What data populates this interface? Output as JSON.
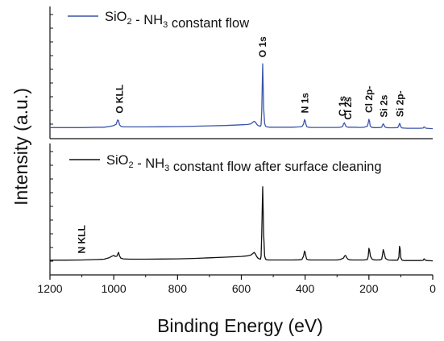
{
  "chart_data": {
    "type": "line",
    "xlabel": "Binding Energy (eV)",
    "ylabel": "Intensity (a.u.)",
    "xlim": [
      1200,
      0
    ],
    "x_reversed": true,
    "x_ticks": [
      1200,
      1000,
      800,
      600,
      400,
      200,
      0
    ],
    "y_ticks_visible": false,
    "grid": false,
    "panels": [
      {
        "position": "top",
        "legend": {
          "prefix": "SiO",
          "sub1": "2",
          "middle": " - NH",
          "sub2": "3",
          "suffix": " constant flow"
        },
        "color": "#3a55a8",
        "series": {
          "x": [
            1200,
            1150,
            1100,
            1050,
            1030,
            1010,
            1000,
            992,
            988,
            985,
            982,
            978,
            970,
            950,
            900,
            850,
            800,
            750,
            700,
            650,
            600,
            580,
            570,
            565,
            560,
            556,
            552,
            548,
            544,
            540,
            538,
            536,
            533,
            530,
            527,
            524,
            520,
            510,
            500,
            480,
            460,
            440,
            420,
            410,
            405,
            402,
            400,
            397,
            395,
            390,
            380,
            360,
            340,
            320,
            300,
            290,
            285,
            282,
            280,
            277,
            275,
            272,
            270,
            265,
            260,
            250,
            240,
            230,
            215,
            205,
            202,
            200,
            198,
            196,
            192,
            185,
            175,
            165,
            160,
            157,
            155,
            153,
            150,
            145,
            135,
            125,
            110,
            106,
            104,
            102,
            100,
            96,
            90,
            80,
            60,
            40,
            30,
            27,
            25,
            22,
            20,
            10,
            0
          ],
          "y": [
            0.4,
            0.4,
            0.4,
            0.5,
            0.5,
            0.8,
            1.0,
            1.4,
            2.6,
            2.4,
            1.2,
            0.8,
            0.6,
            0.6,
            0.6,
            0.65,
            0.7,
            0.8,
            0.9,
            1.0,
            1.2,
            1.3,
            1.5,
            1.9,
            2.2,
            2.0,
            1.4,
            1.0,
            0.9,
            0.8,
            1.2,
            5.0,
            18.8,
            6.0,
            1.6,
            0.8,
            0.6,
            0.5,
            0.5,
            0.5,
            0.5,
            0.5,
            0.6,
            0.7,
            1.4,
            2.7,
            2.4,
            1.2,
            0.7,
            0.5,
            0.45,
            0.45,
            0.45,
            0.45,
            0.45,
            0.5,
            0.6,
            0.8,
            1.4,
            1.8,
            1.4,
            0.8,
            0.6,
            0.5,
            0.5,
            0.5,
            0.5,
            0.45,
            0.5,
            0.8,
            1.8,
            2.8,
            2.2,
            0.9,
            0.5,
            0.4,
            0.4,
            0.4,
            0.5,
            1.2,
            1.5,
            1.2,
            0.6,
            0.4,
            0.35,
            0.35,
            0.4,
            1.0,
            1.6,
            1.3,
            0.6,
            0.3,
            0.25,
            0.2,
            0.2,
            0.2,
            0.25,
            0.6,
            0.5,
            0.25,
            0.2,
            0.15,
            0.1
          ]
        },
        "peak_labels": [
          {
            "text": "O KLL",
            "x": 982
          },
          {
            "text": "O 1s",
            "x": 533
          },
          {
            "text": "N 1s",
            "x": 400
          },
          {
            "text": "C 1s",
            "x": 283
          },
          {
            "text": "Cl 2s",
            "x": 265
          },
          {
            "text": "Cl 2p-",
            "x": 200
          },
          {
            "text": "Si 2s",
            "x": 153
          },
          {
            "text": "Si 2p-",
            "x": 102
          }
        ]
      },
      {
        "position": "bottom",
        "legend": {
          "prefix": "SiO",
          "sub1": "2",
          "middle": " - NH",
          "sub2": "3",
          "suffix": " constant flow after surface cleaning"
        },
        "color": "#111111",
        "series": {
          "x": [
            1200,
            1150,
            1100,
            1050,
            1030,
            1015,
            1005,
            1000,
            995,
            990,
            987,
            985,
            982,
            978,
            970,
            950,
            900,
            850,
            800,
            750,
            700,
            650,
            600,
            580,
            570,
            565,
            560,
            556,
            552,
            548,
            544,
            540,
            538,
            536,
            533,
            530,
            527,
            524,
            520,
            510,
            500,
            480,
            460,
            440,
            420,
            410,
            405,
            402,
            400,
            397,
            395,
            390,
            380,
            360,
            340,
            320,
            300,
            290,
            280,
            276,
            273,
            270,
            266,
            260,
            250,
            240,
            230,
            215,
            205,
            202,
            200,
            198,
            195,
            190,
            185,
            175,
            165,
            160,
            157,
            155,
            152,
            148,
            140,
            125,
            110,
            106,
            104,
            102,
            100,
            96,
            90,
            80,
            60,
            40,
            30,
            27,
            25,
            22,
            20,
            10,
            0
          ],
          "y": [
            0.3,
            0.3,
            0.35,
            0.5,
            0.6,
            1.0,
            1.5,
            1.7,
            1.4,
            1.5,
            2.2,
            2.6,
            1.6,
            0.9,
            0.7,
            0.6,
            0.6,
            0.65,
            0.7,
            0.8,
            1.0,
            1.2,
            1.4,
            1.6,
            1.8,
            2.2,
            2.6,
            2.2,
            1.4,
            0.9,
            0.7,
            0.6,
            1.5,
            8.0,
            22.0,
            8.0,
            1.5,
            0.6,
            0.4,
            0.35,
            0.35,
            0.35,
            0.35,
            0.35,
            0.4,
            0.5,
            1.5,
            3.0,
            2.6,
            1.2,
            0.6,
            0.4,
            0.35,
            0.35,
            0.35,
            0.35,
            0.35,
            0.5,
            0.9,
            1.6,
            1.7,
            1.1,
            0.6,
            0.4,
            0.35,
            0.35,
            0.35,
            0.35,
            0.5,
            1.5,
            3.8,
            3.2,
            1.4,
            0.6,
            0.4,
            0.35,
            0.4,
            0.6,
            2.2,
            3.4,
            2.4,
            0.8,
            0.35,
            0.3,
            0.3,
            1.2,
            4.4,
            3.6,
            1.0,
            0.3,
            0.2,
            0.2,
            0.2,
            0.2,
            0.25,
            0.7,
            0.5,
            0.25,
            0.2,
            0.15,
            0.1
          ]
        },
        "peak_labels": [
          {
            "text": "N KLL",
            "x": 1100
          }
        ]
      }
    ]
  }
}
